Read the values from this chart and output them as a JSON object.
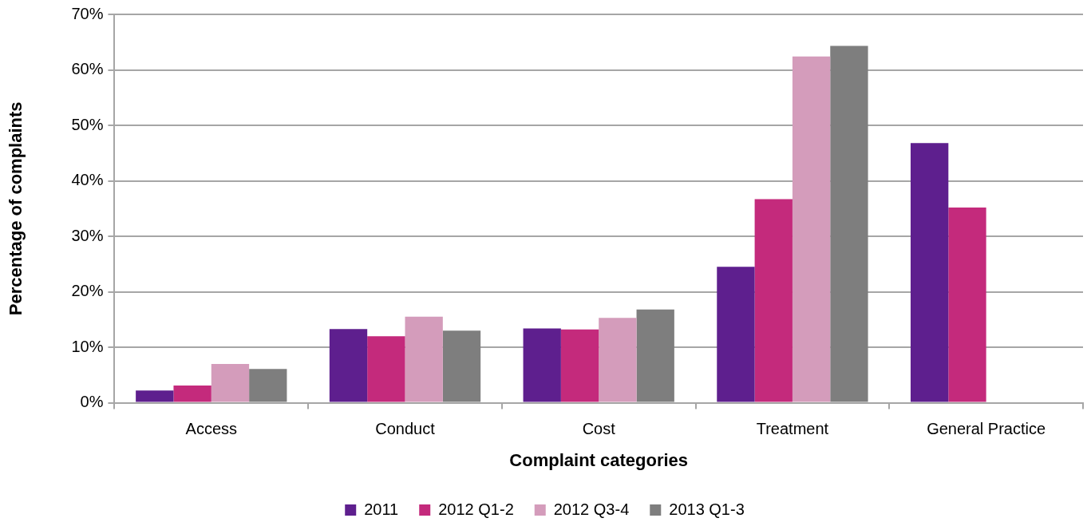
{
  "chart_data": {
    "type": "bar",
    "xlabel": "Complaint categories",
    "ylabel": "Percentage of complaints",
    "categories": [
      "Access",
      "Conduct",
      "Cost",
      "Treatment",
      "General Practice"
    ],
    "series": [
      {
        "name": "2011",
        "color": "#5e1f8e",
        "values": [
          2.2,
          13.3,
          13.4,
          24.5,
          46.8
        ]
      },
      {
        "name": "2012 Q1-2",
        "color": "#c42a7c",
        "values": [
          3.1,
          12.0,
          13.2,
          36.7,
          35.2
        ]
      },
      {
        "name": "2012 Q3-4",
        "color": "#d49cbb",
        "values": [
          7.0,
          15.5,
          15.3,
          62.4,
          null
        ]
      },
      {
        "name": "2013 Q1-3",
        "color": "#7e7e7e",
        "values": [
          6.1,
          13.0,
          16.8,
          64.3,
          null
        ]
      }
    ],
    "ylim": [
      0,
      70
    ],
    "yticks": [
      {
        "value": 0,
        "label": "0%"
      },
      {
        "value": 10,
        "label": "10%"
      },
      {
        "value": 20,
        "label": "20%"
      },
      {
        "value": 30,
        "label": "30%"
      },
      {
        "value": 40,
        "label": "40%"
      },
      {
        "value": 50,
        "label": "50%"
      },
      {
        "value": 60,
        "label": "60%"
      },
      {
        "value": 70,
        "label": "70%"
      }
    ],
    "grid": "y",
    "legend": "bottom"
  }
}
